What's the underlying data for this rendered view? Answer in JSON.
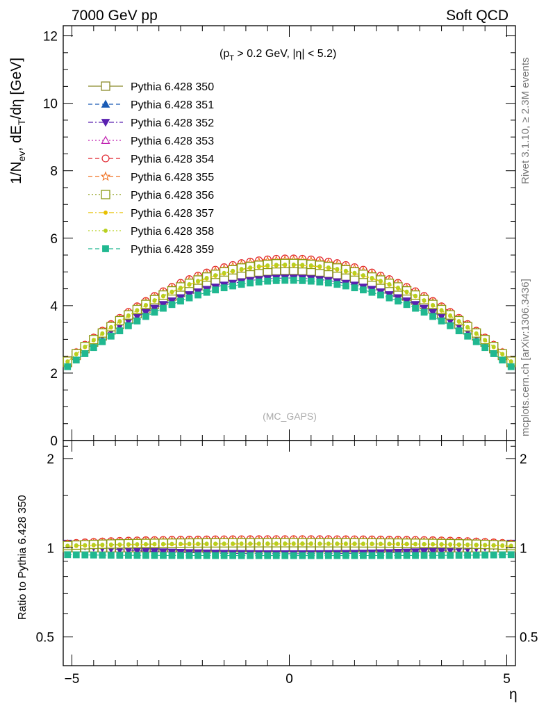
{
  "header": {
    "left": "7000 GeV pp",
    "right": "Soft QCD"
  },
  "side_labels": {
    "rivet": "Rivet 3.1.10, ≥ 2.3M events",
    "mcplots": "mcplots.cern.ch [arXiv:1306.3436]"
  },
  "cut_label": {
    "open": "(p",
    "sub": "T",
    "rest": " > 0.2 GeV, |η| < 5.2)"
  },
  "watermark": "(MC_GAPS)",
  "main_ylabel": {
    "a": "1/N",
    "a_sub": "ev",
    "b": ", dE",
    "b_sub": "T",
    "c": "/dη [GeV]"
  },
  "ratio_ylabel": "Ratio to Pythia 6.428 350",
  "xlabel": "η",
  "main_ticks": [
    "0",
    "2",
    "4",
    "6",
    "8",
    "10",
    "12"
  ],
  "ratio_ticks": [
    "0.5",
    "1",
    "2"
  ],
  "x_ticks": [
    "−5",
    "0",
    "5"
  ],
  "chart_data": {
    "type": "line",
    "xlim": [
      -5.2,
      5.2
    ],
    "main_ylim": [
      0,
      12.3
    ],
    "ratio_ylim": [
      0.4,
      2.3
    ],
    "ratio_scale": "log",
    "legend_placement": "top-left",
    "x_bins": {
      "first": -5.1,
      "last": 5.1,
      "count": 52
    },
    "series": [
      {
        "name": "Pythia 6.428 350",
        "color": "#8a8a2a",
        "marker": "open-square",
        "dash": "solid",
        "peak": 5.05,
        "edge": 1.98
      },
      {
        "name": "Pythia 6.428 351",
        "color": "#1a5bb5",
        "marker": "filled-triangle-up",
        "dash": "dash",
        "peak": 5.3,
        "edge": 2.02
      },
      {
        "name": "Pythia 6.428 352",
        "color": "#5a20b0",
        "marker": "filled-triangle-down",
        "dash": "dashdot",
        "peak": 4.82,
        "edge": 2.1
      },
      {
        "name": "Pythia 6.428 353",
        "color": "#c020b0",
        "marker": "open-triangle-up",
        "dash": "dot",
        "peak": 5.33,
        "edge": 2.01
      },
      {
        "name": "Pythia 6.428 354",
        "color": "#e0202a",
        "marker": "open-circle",
        "dash": "dash",
        "peak": 5.4,
        "edge": 2.02
      },
      {
        "name": "Pythia 6.428 355",
        "color": "#f07020",
        "marker": "open-star",
        "dash": "dash",
        "peak": 5.35,
        "edge": 2.01
      },
      {
        "name": "Pythia 6.428 356",
        "color": "#8a9a10",
        "marker": "open-square",
        "dash": "dot",
        "peak": 5.25,
        "edge": 2.0
      },
      {
        "name": "Pythia 6.428 357",
        "color": "#e8c000",
        "marker": "dot",
        "dash": "dashdot",
        "peak": 5.2,
        "edge": 1.99
      },
      {
        "name": "Pythia 6.428 358",
        "color": "#b8d020",
        "marker": "dot",
        "dash": "dot",
        "peak": 5.22,
        "edge": 2.0
      },
      {
        "name": "Pythia 6.428 359",
        "color": "#20b890",
        "marker": "filled-square",
        "dash": "dash",
        "peak": 4.75,
        "edge": 1.88
      }
    ]
  }
}
